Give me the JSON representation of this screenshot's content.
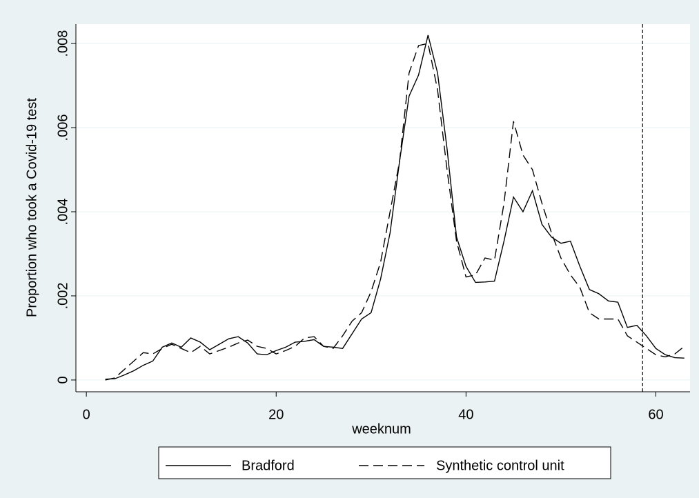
{
  "chart_data": {
    "type": "line",
    "x_label": "weeknum",
    "y_label": "Proportion who took a Covid-19 test",
    "x": [
      2,
      3,
      4,
      5,
      6,
      7,
      8,
      9,
      10,
      11,
      12,
      13,
      14,
      15,
      16,
      17,
      18,
      19,
      20,
      21,
      22,
      23,
      24,
      25,
      26,
      27,
      28,
      29,
      30,
      31,
      32,
      33,
      34,
      35,
      36,
      37,
      38,
      39,
      40,
      41,
      42,
      43,
      44,
      45,
      46,
      47,
      48,
      49,
      50,
      51,
      52,
      53,
      54,
      55,
      56,
      57,
      58,
      59,
      60,
      61,
      62,
      63
    ],
    "series": [
      {
        "name": "Bradford",
        "color": "#000000",
        "dash": "solid",
        "values": [
          2e-05,
          3e-05,
          0.00012,
          0.00022,
          0.00035,
          0.00045,
          0.00078,
          0.00088,
          0.00078,
          0.001,
          0.0009,
          0.00072,
          0.00085,
          0.00098,
          0.00103,
          0.00088,
          0.00062,
          0.0006,
          0.0007,
          0.00078,
          0.0009,
          0.00092,
          0.00096,
          0.0008,
          0.00078,
          0.00075,
          0.0011,
          0.00145,
          0.0016,
          0.0024,
          0.0035,
          0.0052,
          0.00675,
          0.00725,
          0.0082,
          0.0073,
          0.0055,
          0.0034,
          0.0027,
          0.00232,
          0.00233,
          0.00235,
          0.0033,
          0.00435,
          0.004,
          0.0045,
          0.0037,
          0.0034,
          0.00325,
          0.0033,
          0.0027,
          0.00215,
          0.00205,
          0.00188,
          0.00185,
          0.00125,
          0.0013,
          0.00105,
          0.00075,
          0.0006,
          0.00053,
          0.00052
        ]
      },
      {
        "name": "Synthetic control unit",
        "color": "#000000",
        "dash": "dashed",
        "values": [
          0,
          5e-05,
          0.00025,
          0.00045,
          0.00065,
          0.00062,
          0.00075,
          0.00085,
          0.00075,
          0.00065,
          0.0008,
          0.00062,
          0.0007,
          0.00078,
          0.00088,
          0.00095,
          0.0008,
          0.00075,
          0.00062,
          0.0007,
          0.0008,
          0.001,
          0.00103,
          0.0008,
          0.00075,
          0.00105,
          0.0014,
          0.0016,
          0.0021,
          0.0028,
          0.004,
          0.0052,
          0.0073,
          0.00795,
          0.008,
          0.0069,
          0.005,
          0.0033,
          0.00245,
          0.0025,
          0.0029,
          0.00285,
          0.0042,
          0.00615,
          0.00535,
          0.005,
          0.0042,
          0.0035,
          0.0029,
          0.0025,
          0.0022,
          0.0016,
          0.00145,
          0.00145,
          0.00145,
          0.00105,
          0.0009,
          0.00075,
          0.0006,
          0.00055,
          0.00062,
          0.0008
        ]
      }
    ],
    "xlim": [
      -1.1,
      63.6
    ],
    "ylim": [
      -0.00028,
      0.00846
    ],
    "xticks": [
      0,
      20,
      40,
      60
    ],
    "yticks": [
      0,
      {
        "value": 0.002,
        "label": ".002"
      },
      {
        "value": 0.004,
        "label": ".004"
      },
      {
        "value": 0.006,
        "label": ".006"
      },
      {
        "value": 0.008,
        "label": ".008"
      }
    ],
    "grid": true,
    "xline": 58.6,
    "legend": "bottom"
  }
}
